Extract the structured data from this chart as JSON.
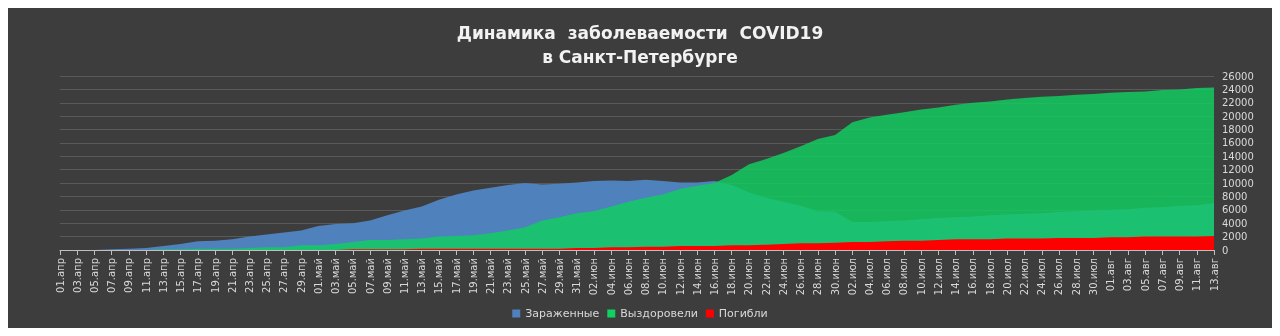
{
  "chart_data": {
    "type": "area",
    "title": "Динамика  заболеваемости  COVID19\nв Санкт-Петербурге",
    "categories": [
      "01.апр",
      "03.апр",
      "05.апр",
      "07.апр",
      "09.апр",
      "11.апр",
      "13.апр",
      "15.апр",
      "17.апр",
      "19.апр",
      "21.апр",
      "23.апр",
      "25.апр",
      "27.апр",
      "29.апр",
      "01.май",
      "03.май",
      "05.май",
      "07.май",
      "09.май",
      "11.май",
      "13.май",
      "15.май",
      "17.май",
      "19.май",
      "21.май",
      "23.май",
      "25.май",
      "27.май",
      "29.май",
      "31.май",
      "02.июн",
      "04.июн",
      "06.июн",
      "08.июн",
      "10.июн",
      "12.июн",
      "14.июн",
      "16.июн",
      "18.июн",
      "20.июн",
      "22.июн",
      "24.июн",
      "26.июн",
      "28.июн",
      "30.июн",
      "02.июл",
      "04.июл",
      "06.июл",
      "08.июл",
      "10.июл",
      "12.июл",
      "14.июл",
      "16.июл",
      "18.июл",
      "20.июл",
      "22.июл",
      "24.июл",
      "26.июл",
      "28.июл",
      "30.июл",
      "01.авг",
      "03.авг",
      "05.авг",
      "07.авг",
      "09.авг",
      "11.авг",
      "13.авг"
    ],
    "series": [
      {
        "name": "Зараженные",
        "color": "#4f81bd",
        "values": [
          0,
          0,
          0,
          100,
          200,
          300,
          600,
          900,
          1300,
          1400,
          1600,
          2000,
          2300,
          2600,
          2900,
          3600,
          3900,
          4000,
          4400,
          5200,
          5900,
          6500,
          7500,
          8300,
          8900,
          9300,
          9700,
          10000,
          9800,
          9900,
          10100,
          10300,
          10400,
          10300,
          10500,
          10300,
          10100,
          10100,
          10300,
          9700,
          8600,
          7800,
          7200,
          6600,
          5800,
          5700,
          4200,
          4200,
          4300,
          4400,
          4600,
          4800,
          4900,
          5000,
          5200,
          5300,
          5400,
          5500,
          5700,
          5800,
          5900,
          6000,
          6100,
          6300,
          6400,
          6600,
          6700,
          7000
        ]
      },
      {
        "name": "Выздоровели",
        "color": "#10d060",
        "values": [
          0,
          0,
          0,
          0,
          0,
          0,
          100,
          100,
          200,
          200,
          200,
          300,
          400,
          400,
          700,
          700,
          900,
          1200,
          1500,
          1500,
          1600,
          1700,
          2000,
          2100,
          2200,
          2500,
          2900,
          3400,
          4400,
          4900,
          5500,
          5800,
          6500,
          7200,
          7800,
          8300,
          9100,
          9600,
          10000,
          11200,
          12800,
          13600,
          14500,
          15500,
          16600,
          17200,
          19100,
          19800,
          20200,
          20600,
          21000,
          21300,
          21700,
          22000,
          22200,
          22500,
          22700,
          22900,
          23000,
          23200,
          23300,
          23500,
          23600,
          23700,
          23900,
          24000,
          24200,
          24300
        ]
      },
      {
        "name": "Погибли",
        "color": "#ff0000",
        "values": [
          0,
          0,
          0,
          0,
          0,
          0,
          0,
          0,
          0,
          0,
          0,
          0,
          0,
          0,
          0,
          0,
          0,
          100,
          100,
          100,
          100,
          200,
          200,
          200,
          200,
          200,
          200,
          200,
          200,
          200,
          300,
          300,
          400,
          400,
          500,
          500,
          600,
          600,
          600,
          700,
          700,
          800,
          900,
          1000,
          1000,
          1100,
          1200,
          1200,
          1300,
          1400,
          1400,
          1500,
          1600,
          1600,
          1600,
          1700,
          1700,
          1700,
          1800,
          1800,
          1800,
          1900,
          1900,
          2000,
          2000,
          2000,
          2000,
          2100
        ]
      }
    ],
    "ylim": [
      0,
      26000
    ],
    "yticks": [
      0,
      2000,
      4000,
      6000,
      8000,
      10000,
      12000,
      14000,
      16000,
      18000,
      20000,
      22000,
      24000,
      26000
    ],
    "grid": "y",
    "legend": "bottom",
    "marker": "none"
  }
}
